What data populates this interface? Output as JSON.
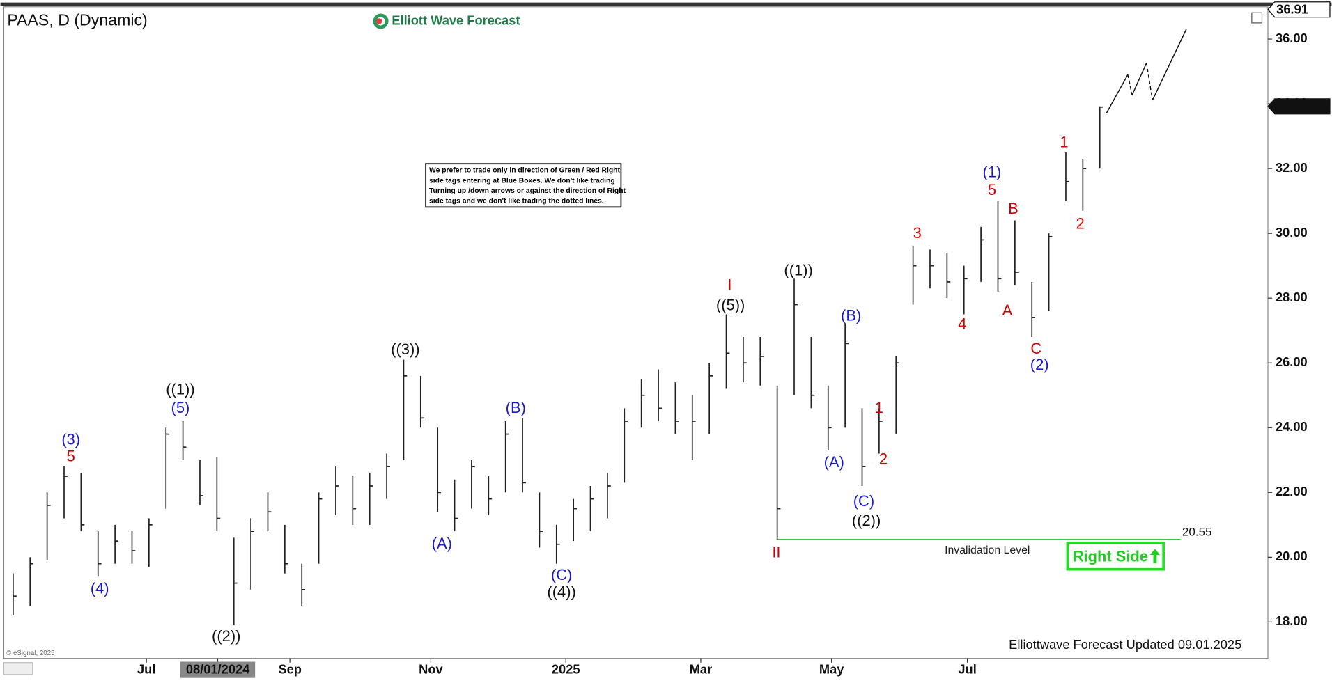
{
  "chart_data": {
    "type": "ohlc",
    "title": "PAAS, D (Dynamic)",
    "brand": "Elliott Wave Forecast",
    "note": [
      "We prefer to trade only in direction of Green / Red Right",
      "side tags entering at Blue Boxes. We don't like trading",
      "Turning up /down arrows or against the direction of Right",
      "side tags and we don't like trading the dotted lines."
    ],
    "footer": "Elliottwave Forecast Updated 09.01.2025",
    "copyright": "© eSignal, 2025",
    "right_side": "Right Side",
    "x": [
      2.5,
      7.5,
      12.5,
      17.5,
      22.5,
      27.5,
      32.5,
      37.5,
      42.5,
      47.5,
      52.5,
      57.5,
      62.5,
      67.5,
      72.5,
      77.5,
      82.5,
      87.5,
      92.5,
      97.5,
      102.5,
      107.5,
      112.5,
      117.5,
      122.5,
      127.5,
      132.5,
      137.5,
      142.5,
      147.5,
      152.5,
      157.5,
      162.5,
      167.5,
      172.5,
      177.5,
      182.5,
      187.5,
      192.5,
      197.5,
      202.5,
      207.5,
      212.5,
      217.5,
      222.5,
      227.5,
      232.5,
      237.5,
      242.5,
      247.5,
      252.5,
      257.5,
      262.5,
      267.5,
      272.5,
      277.5,
      282.5,
      287.5,
      292.5,
      297.5,
      302.5,
      307.5,
      312.5,
      317.5,
      322.5
    ],
    "low": [
      18.2,
      18.5,
      19.9,
      21.2,
      20.8,
      19.4,
      19.8,
      19.8,
      19.7,
      21.5,
      23.0,
      21.6,
      20.8,
      17.9,
      19.0,
      20.8,
      19.5,
      18.5,
      19.8,
      21.3,
      21.0,
      21.0,
      21.8,
      23.0,
      24.0,
      21.4,
      20.8,
      21.5,
      21.3,
      22.0,
      22.0,
      20.3,
      19.8,
      20.5,
      20.8,
      21.2,
      22.3,
      24.0,
      24.2,
      23.8,
      23.0,
      23.8,
      25.2,
      25.4,
      25.3,
      20.55,
      25.0,
      24.6,
      23.3,
      24.0,
      22.2,
      23.2,
      23.8,
      27.8,
      28.3,
      28.0,
      27.5,
      28.5,
      28.2,
      28.4,
      26.8,
      27.6,
      31.0,
      30.7,
      32.0
    ],
    "high": [
      19.5,
      20.0,
      22.0,
      22.8,
      22.6,
      20.8,
      21.0,
      20.8,
      21.2,
      24.0,
      24.2,
      23.0,
      23.1,
      20.6,
      21.2,
      22.0,
      21.0,
      19.8,
      22.0,
      22.8,
      22.5,
      22.6,
      23.2,
      26.1,
      25.6,
      24.0,
      22.4,
      23.0,
      22.5,
      24.2,
      24.3,
      22.0,
      21.0,
      21.8,
      22.2,
      22.6,
      24.6,
      25.5,
      25.8,
      25.4,
      25.0,
      26.0,
      27.5,
      26.8,
      26.8,
      25.3,
      28.6,
      26.8,
      25.3,
      27.2,
      24.6,
      24.6,
      26.2,
      29.6,
      29.5,
      29.4,
      29.0,
      30.2,
      31.0,
      30.4,
      28.5,
      30.0,
      32.5,
      32.3,
      33.92
    ],
    "close": [
      18.8,
      19.8,
      21.6,
      22.5,
      21.0,
      19.8,
      20.5,
      20.2,
      21.0,
      23.8,
      23.4,
      21.9,
      21.2,
      19.2,
      20.8,
      21.4,
      19.8,
      19.0,
      21.8,
      22.2,
      21.5,
      22.2,
      22.8,
      25.6,
      24.3,
      22.0,
      21.2,
      22.8,
      21.8,
      23.8,
      22.3,
      20.8,
      20.4,
      21.5,
      21.8,
      22.2,
      24.2,
      25.0,
      24.6,
      24.2,
      24.2,
      25.6,
      26.3,
      26.0,
      26.2,
      21.5,
      27.8,
      25.0,
      24.0,
      26.6,
      22.8,
      24.2,
      26.0,
      29.0,
      29.0,
      28.5,
      28.6,
      29.8,
      28.6,
      28.8,
      27.4,
      29.9,
      31.6,
      32.0,
      33.9
    ],
    "bar_color": "#222222",
    "projection": {
      "x": [
        324.5,
        330.75,
        332,
        336.25,
        338,
        348
      ],
      "values": [
        33.72,
        34.9,
        34.27,
        35.26,
        34.11,
        36.31
      ],
      "dashed": [
        1,
        3
      ]
    },
    "invalidation": {
      "value": 20.55,
      "label": "Invalidation Level",
      "x": [
        227.5,
        346.25
      ],
      "color": "#2ecc40"
    },
    "last_price": 33.92,
    "top_price": 36.91,
    "xlim": [
      0,
      372
    ],
    "ylim": [
      16.85,
      37.1
    ],
    "yticks": [
      {
        "value": 18,
        "label": "18.00"
      },
      {
        "value": 20,
        "label": "20.00"
      },
      {
        "value": 22,
        "label": "22.00"
      },
      {
        "value": 24,
        "label": "24.00"
      },
      {
        "value": 26,
        "label": "26.00"
      },
      {
        "value": 28,
        "label": "28.00"
      },
      {
        "value": 30,
        "label": "30.00"
      },
      {
        "value": 32,
        "label": "32.00"
      },
      {
        "value": 34,
        "label": "34.00"
      },
      {
        "value": 36,
        "label": "36.00"
      }
    ],
    "xticks": [
      {
        "value": 41.75,
        "label": "Jul"
      },
      {
        "value": 62.75,
        "label": "08/01/2024"
      },
      {
        "value": 84,
        "label": "Sep"
      },
      {
        "value": 125.5,
        "label": "Nov"
      },
      {
        "value": 165.25,
        "label": "2025"
      },
      {
        "value": 205,
        "label": "Mar"
      },
      {
        "value": 243.5,
        "label": "May"
      },
      {
        "value": 283.5,
        "label": "Jul"
      }
    ],
    "waves": [
      {
        "text": "(3)",
        "color": "#1a1ad6"
      },
      {
        "text": "5",
        "color": "#d40000"
      },
      {
        "text": "(4)",
        "color": "#1a1ad6"
      },
      {
        "text": "((1))",
        "color": "#111111"
      },
      {
        "text": "(5)",
        "color": "#1a1ad6"
      },
      {
        "text": "((2))",
        "color": "#111111"
      },
      {
        "text": "((3))",
        "color": "#111111"
      },
      {
        "text": "(A)",
        "color": "#1a1ad6"
      },
      {
        "text": "(B)",
        "color": "#1a1ad6"
      },
      {
        "text": "(C)",
        "color": "#1a1ad6"
      },
      {
        "text": "((4))",
        "color": "#111111"
      },
      {
        "text": "I",
        "color": "#d40000"
      },
      {
        "text": "((5))",
        "color": "#111111"
      },
      {
        "text": "II",
        "color": "#d40000"
      },
      {
        "text": "((1))",
        "color": "#111111"
      },
      {
        "text": "(B)",
        "color": "#1a1ad6"
      },
      {
        "text": "(A)",
        "color": "#1a1ad6"
      },
      {
        "text": "1",
        "color": "#d40000"
      },
      {
        "text": "2",
        "color": "#d40000"
      },
      {
        "text": "(C)",
        "color": "#1a1ad6"
      },
      {
        "text": "((2))",
        "color": "#111111"
      },
      {
        "text": "3",
        "color": "#d40000"
      },
      {
        "text": "4",
        "color": "#d40000"
      },
      {
        "text": "(1)",
        "color": "#1a1ad6"
      },
      {
        "text": "5",
        "color": "#d40000"
      },
      {
        "text": "B",
        "color": "#d40000"
      },
      {
        "text": "A",
        "color": "#d40000"
      },
      {
        "text": "C",
        "color": "#d40000"
      },
      {
        "text": "(2)",
        "color": "#1a1ad6"
      },
      {
        "text": "1",
        "color": "#d40000"
      },
      {
        "text": "2",
        "color": "#d40000"
      }
    ]
  }
}
